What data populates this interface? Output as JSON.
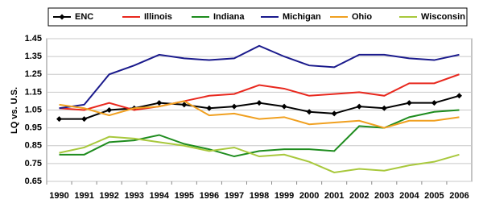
{
  "chart_data": {
    "type": "line",
    "y_label": "LQ vs. U.S.",
    "categories": [
      "1990",
      "1991",
      "1992",
      "1993",
      "1994",
      "1995",
      "1996",
      "1997",
      "1998",
      "1999",
      "2000",
      "2001",
      "2002",
      "2003",
      "2004",
      "2005",
      "2006"
    ],
    "series": [
      {
        "name": "ENC",
        "color": "#000000",
        "marker": "diamond",
        "values": [
          1.0,
          1.0,
          1.05,
          1.06,
          1.09,
          1.08,
          1.06,
          1.07,
          1.09,
          1.07,
          1.04,
          1.03,
          1.07,
          1.06,
          1.09,
          1.09,
          1.13
        ]
      },
      {
        "name": "Illinois",
        "color": "#e8281e",
        "values": [
          1.06,
          1.05,
          1.09,
          1.05,
          1.07,
          1.1,
          1.13,
          1.14,
          1.19,
          1.17,
          1.13,
          1.14,
          1.15,
          1.13,
          1.2,
          1.2,
          1.25
        ]
      },
      {
        "name": "Indiana",
        "color": "#1e8c1e",
        "values": [
          0.8,
          0.8,
          0.87,
          0.88,
          0.91,
          0.86,
          0.83,
          0.79,
          0.82,
          0.83,
          0.83,
          0.82,
          0.96,
          0.95,
          1.01,
          1.04,
          1.05
        ]
      },
      {
        "name": "Michigan",
        "color": "#1a1a8c",
        "values": [
          1.06,
          1.08,
          1.25,
          1.3,
          1.36,
          1.34,
          1.33,
          1.34,
          1.41,
          1.35,
          1.3,
          1.29,
          1.36,
          1.36,
          1.34,
          1.33,
          1.36
        ]
      },
      {
        "name": "Ohio",
        "color": "#f0a020",
        "values": [
          1.08,
          1.06,
          1.02,
          1.06,
          1.07,
          1.1,
          1.02,
          1.03,
          1.0,
          1.01,
          0.97,
          0.98,
          0.99,
          0.95,
          0.99,
          0.99,
          1.01
        ]
      },
      {
        "name": "Wisconsin",
        "color": "#a8c83c",
        "values": [
          0.81,
          0.84,
          0.9,
          0.89,
          0.87,
          0.85,
          0.82,
          0.84,
          0.79,
          0.8,
          0.76,
          0.7,
          0.72,
          0.71,
          0.74,
          0.76,
          0.8
        ]
      }
    ],
    "ylim": [
      0.65,
      1.45
    ],
    "yticks": [
      0.65,
      0.75,
      0.85,
      0.95,
      1.05,
      1.15,
      1.25,
      1.35,
      1.45
    ],
    "grid": true,
    "legend": "top"
  }
}
